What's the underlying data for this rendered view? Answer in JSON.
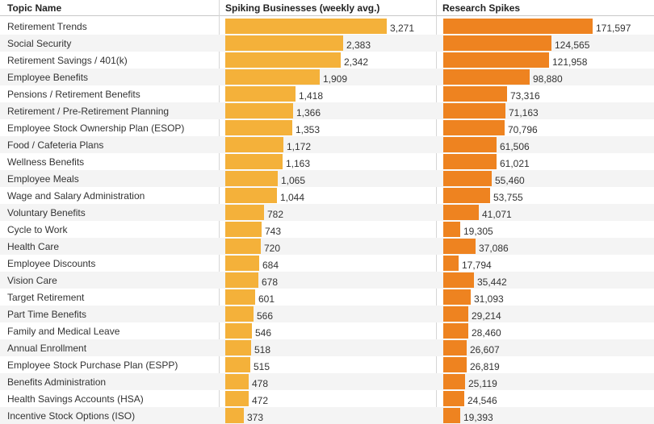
{
  "chart_data": {
    "type": "table",
    "columns": [
      "Topic Name",
      "Spiking Businesses (weekly avg.)",
      "Research Spikes"
    ],
    "colors": {
      "spiking_bar": "#f4b13a",
      "research_bar": "#ee8320"
    },
    "rows": [
      {
        "topic": "Retirement Trends",
        "businesses": 3271,
        "businesses_label": "3,271",
        "spikes": 171597,
        "spikes_label": "171,597"
      },
      {
        "topic": "Social Security",
        "businesses": 2383,
        "businesses_label": "2,383",
        "spikes": 124565,
        "spikes_label": "124,565"
      },
      {
        "topic": "Retirement Savings / 401(k)",
        "businesses": 2342,
        "businesses_label": "2,342",
        "spikes": 121958,
        "spikes_label": "121,958"
      },
      {
        "topic": "Employee Benefits",
        "businesses": 1909,
        "businesses_label": "1,909",
        "spikes": 98880,
        "spikes_label": "98,880"
      },
      {
        "topic": "Pensions / Retirement Benefits",
        "businesses": 1418,
        "businesses_label": "1,418",
        "spikes": 73316,
        "spikes_label": "73,316"
      },
      {
        "topic": "Retirement / Pre-Retirement Planning",
        "businesses": 1366,
        "businesses_label": "1,366",
        "spikes": 71163,
        "spikes_label": "71,163"
      },
      {
        "topic": "Employee Stock Ownership Plan (ESOP)",
        "businesses": 1353,
        "businesses_label": "1,353",
        "spikes": 70796,
        "spikes_label": "70,796"
      },
      {
        "topic": "Food / Cafeteria Plans",
        "businesses": 1172,
        "businesses_label": "1,172",
        "spikes": 61506,
        "spikes_label": "61,506"
      },
      {
        "topic": "Wellness Benefits",
        "businesses": 1163,
        "businesses_label": "1,163",
        "spikes": 61021,
        "spikes_label": "61,021"
      },
      {
        "topic": "Employee Meals",
        "businesses": 1065,
        "businesses_label": "1,065",
        "spikes": 55460,
        "spikes_label": "55,460"
      },
      {
        "topic": "Wage and Salary Administration",
        "businesses": 1044,
        "businesses_label": "1,044",
        "spikes": 53755,
        "spikes_label": "53,755"
      },
      {
        "topic": "Voluntary Benefits",
        "businesses": 782,
        "businesses_label": "782",
        "spikes": 41071,
        "spikes_label": "41,071"
      },
      {
        "topic": "Cycle to Work",
        "businesses": 743,
        "businesses_label": "743",
        "spikes": 19305,
        "spikes_label": "19,305"
      },
      {
        "topic": "Health Care",
        "businesses": 720,
        "businesses_label": "720",
        "spikes": 37086,
        "spikes_label": "37,086"
      },
      {
        "topic": "Employee Discounts",
        "businesses": 684,
        "businesses_label": "684",
        "spikes": 17794,
        "spikes_label": "17,794"
      },
      {
        "topic": "Vision Care",
        "businesses": 678,
        "businesses_label": "678",
        "spikes": 35442,
        "spikes_label": "35,442"
      },
      {
        "topic": "Target Retirement",
        "businesses": 601,
        "businesses_label": "601",
        "spikes": 31093,
        "spikes_label": "31,093"
      },
      {
        "topic": "Part Time Benefits",
        "businesses": 566,
        "businesses_label": "566",
        "spikes": 29214,
        "spikes_label": "29,214"
      },
      {
        "topic": "Family and Medical Leave",
        "businesses": 546,
        "businesses_label": "546",
        "spikes": 28460,
        "spikes_label": "28,460"
      },
      {
        "topic": "Annual Enrollment",
        "businesses": 518,
        "businesses_label": "518",
        "spikes": 26607,
        "spikes_label": "26,607"
      },
      {
        "topic": "Employee Stock Purchase Plan (ESPP)",
        "businesses": 515,
        "businesses_label": "515",
        "spikes": 26819,
        "spikes_label": "26,819"
      },
      {
        "topic": "Benefits Administration",
        "businesses": 478,
        "businesses_label": "478",
        "spikes": 25119,
        "spikes_label": "25,119"
      },
      {
        "topic": "Health Savings Accounts (HSA)",
        "businesses": 472,
        "businesses_label": "472",
        "spikes": 24546,
        "spikes_label": "24,546"
      },
      {
        "topic": "Incentive Stock Options (ISO)",
        "businesses": 373,
        "businesses_label": "373",
        "spikes": 19393,
        "spikes_label": "19,393"
      }
    ]
  }
}
